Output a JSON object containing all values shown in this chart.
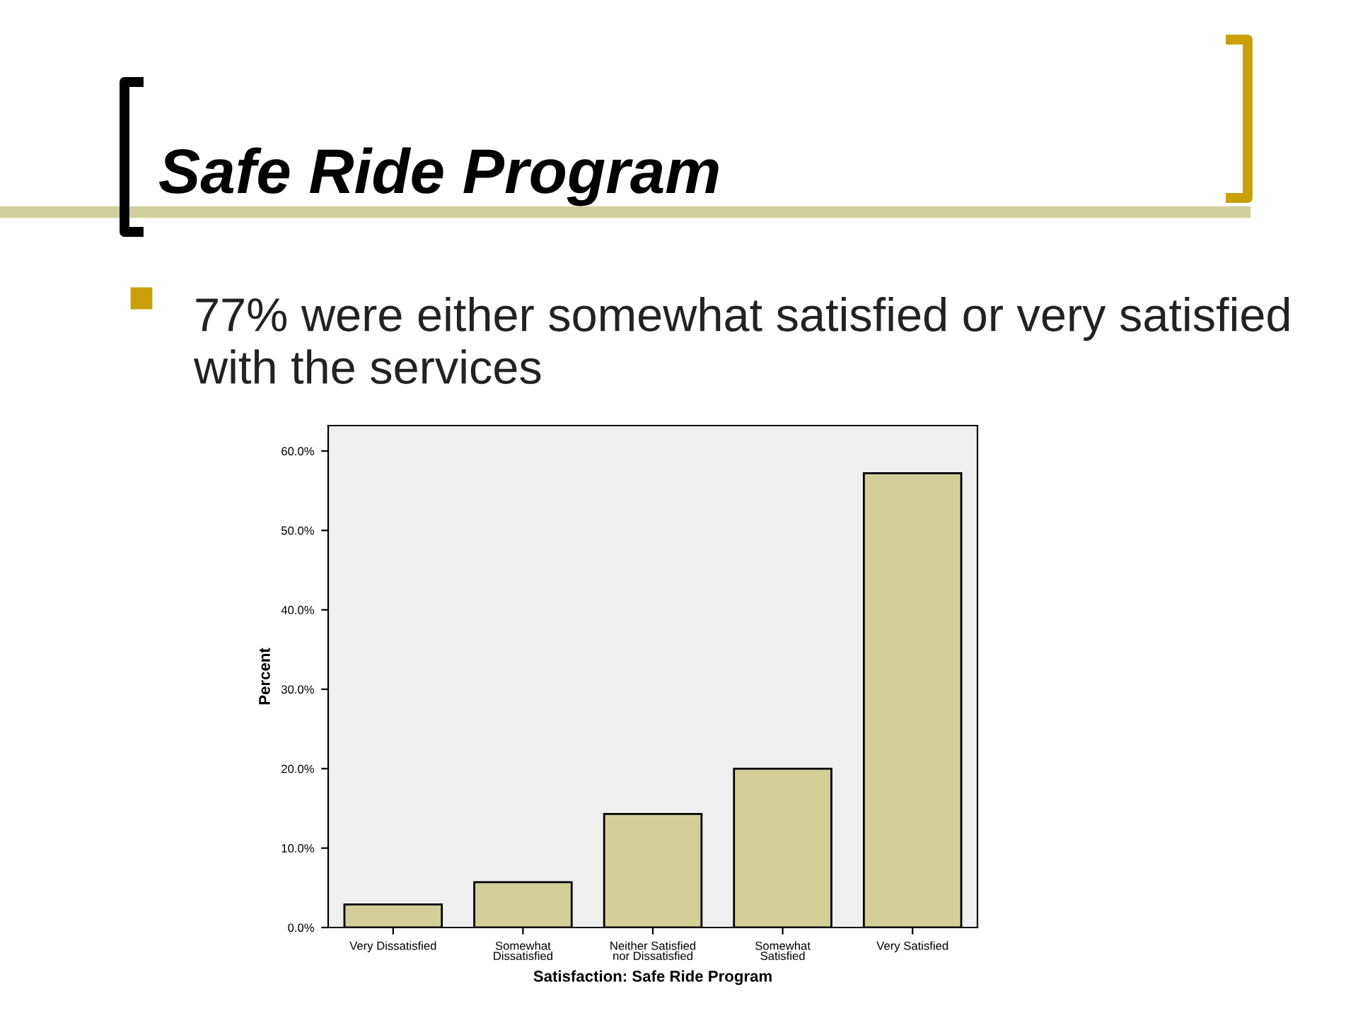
{
  "chart_data": {
    "type": "bar",
    "title": "Safe Ride Program",
    "subtitle": "77% were either somewhat satisfied or very satisfied with the services",
    "xlabel": "Satisfaction: Safe Ride Program",
    "ylabel": "Percent",
    "categories": [
      "Very Dissatisfied",
      "Somewhat\nDissatisfied",
      "Neither Satisfied\nnor Dissatisfied",
      "Somewhat\nSatisfied",
      "Very Satisfied"
    ],
    "values": [
      2.9,
      5.7,
      14.3,
      20.0,
      57.2
    ],
    "color": "#d4cf98",
    "ylim": [
      0,
      63.2
    ],
    "yticks": [
      {
        "value": 0,
        "label": "0.0%"
      },
      {
        "value": 10,
        "label": "10.0%"
      },
      {
        "value": 20,
        "label": "20.0%"
      },
      {
        "value": 30,
        "label": "30.0%"
      },
      {
        "value": 40,
        "label": "40.0%"
      },
      {
        "value": 50,
        "label": "50.0%"
      },
      {
        "value": 60,
        "label": "60.0%"
      }
    ],
    "grid": false
  }
}
